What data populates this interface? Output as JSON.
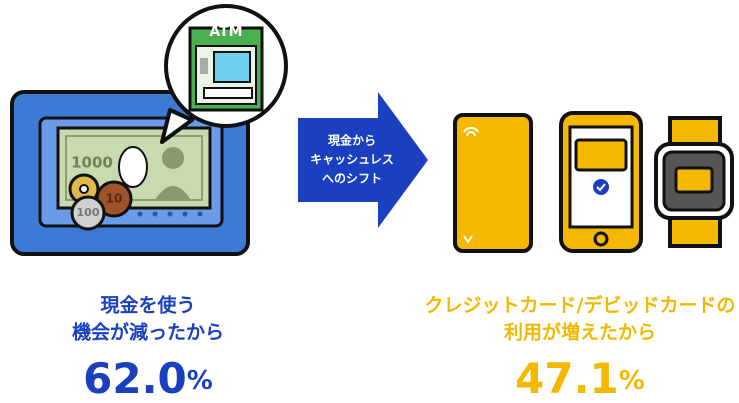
{
  "illustration": {
    "atm_label": "ATM",
    "banknote_label": "1000",
    "coin_labels": [
      "10",
      "100"
    ],
    "arrow_lines": [
      "現金から",
      "キャッシュレス",
      "へのシフト"
    ]
  },
  "left": {
    "caption": [
      "現金を使う",
      "機会が減ったから"
    ],
    "value": "62.0",
    "unit": "%"
  },
  "right": {
    "caption": [
      "クレジットカード/デビッドカードの",
      "利用が増えたから"
    ],
    "value": "47.1",
    "unit": "%"
  }
}
